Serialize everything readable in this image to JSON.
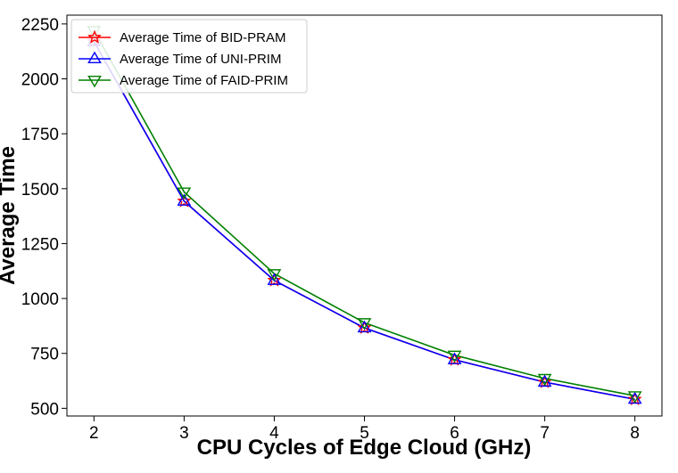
{
  "chart_data": {
    "type": "line",
    "xlabel": "CPU Cycles of Edge Cloud (GHz)",
    "ylabel": "Average Time",
    "x": [
      2,
      3,
      4,
      5,
      6,
      7,
      8
    ],
    "xlim": [
      1.7,
      8.3
    ],
    "ylim": [
      465,
      2290
    ],
    "xticks": [
      "2",
      "3",
      "4",
      "5",
      "6",
      "7",
      "8"
    ],
    "yticks": [
      500,
      750,
      1000,
      1250,
      1500,
      1750,
      2000,
      2250
    ],
    "ytick_labels": [
      "500",
      "750",
      "1000",
      "1250",
      "1500",
      "1750",
      "2000",
      "2250"
    ],
    "legend_position": "upper-left",
    "grid": false,
    "series": [
      {
        "name": "Average Time of BID-PRAM",
        "color": "#ff0000",
        "marker": "star",
        "values": [
          2170,
          1443,
          1082,
          866,
          721,
          619,
          541
        ]
      },
      {
        "name": "Average Time of UNI-PRIM",
        "color": "#0000ff",
        "marker": "triangle-up",
        "values": [
          2170,
          1443,
          1082,
          866,
          721,
          619,
          541
        ]
      },
      {
        "name": "Average Time of FAID-PRIM",
        "color": "#008000",
        "marker": "triangle-down",
        "values": [
          2220,
          1485,
          1113,
          890,
          742,
          636,
          557
        ]
      }
    ]
  }
}
